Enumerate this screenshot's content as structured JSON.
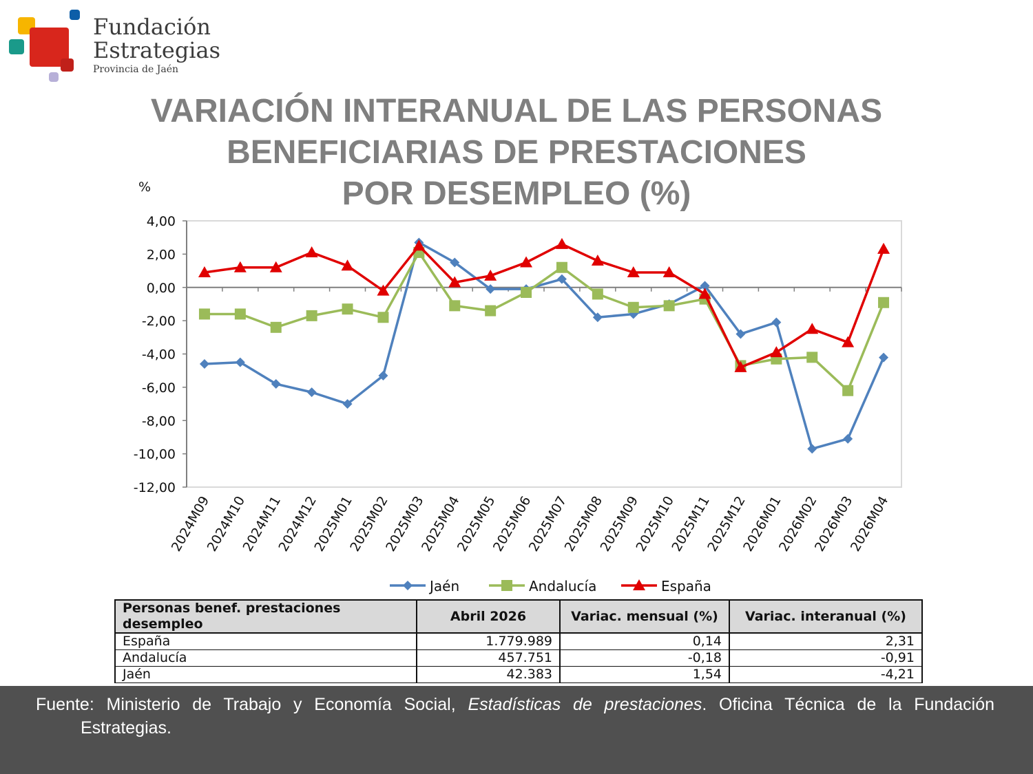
{
  "brand": {
    "line1": "Fundación",
    "line2": "Estrategias",
    "line3": "Provincia de Jaén",
    "colors": [
      "#f7b500",
      "#0d5ea8",
      "#1a9a8a",
      "#d8261c",
      "#b7b0d8"
    ]
  },
  "title": [
    "VARIACIÓN INTERANUAL DE LAS PERSONAS",
    "BENEFICIARIAS DE PRESTACIONES",
    "POR DESEMPLEO (%)"
  ],
  "chart_data": {
    "type": "line",
    "ylabel": "%",
    "ylim": [
      -12,
      4
    ],
    "yticks": [
      "4,00",
      "2,00",
      "0,00",
      "-2,00",
      "-4,00",
      "-6,00",
      "-8,00",
      "-10,00",
      "-12,00"
    ],
    "grid": false,
    "legend": "bottom",
    "categories": [
      "2024M09",
      "2024M10",
      "2024M11",
      "2024M12",
      "2025M01",
      "2025M02",
      "2025M03",
      "2025M04",
      "2025M05",
      "2025M06",
      "2025M07",
      "2025M08",
      "2025M09",
      "2025M10",
      "2025M11",
      "2025M12",
      "2026M01",
      "2026M02",
      "2026M03",
      "2026M04"
    ],
    "series": [
      {
        "name": "Jaén",
        "color": "#4f81bd",
        "marker": "diamond",
        "values": [
          -4.6,
          -4.5,
          -5.8,
          -6.3,
          -7.0,
          -5.3,
          2.7,
          1.5,
          -0.1,
          -0.1,
          0.5,
          -1.8,
          -1.6,
          -1.0,
          0.1,
          -2.8,
          -2.1,
          -9.7,
          -9.1,
          -4.21
        ]
      },
      {
        "name": "Andalucía",
        "color": "#9bbb59",
        "marker": "square",
        "values": [
          -1.6,
          -1.6,
          -2.4,
          -1.7,
          -1.3,
          -1.8,
          2.1,
          -1.1,
          -1.4,
          -0.3,
          1.2,
          -0.4,
          -1.2,
          -1.1,
          -0.7,
          -4.7,
          -4.3,
          -4.2,
          -6.2,
          -0.91
        ]
      },
      {
        "name": "España",
        "color": "#e00000",
        "marker": "triangle",
        "values": [
          0.9,
          1.2,
          1.2,
          2.1,
          1.3,
          -0.2,
          2.5,
          0.3,
          0.7,
          1.5,
          2.6,
          1.6,
          0.9,
          0.9,
          -0.4,
          -4.8,
          -3.9,
          -2.5,
          -3.3,
          2.31
        ]
      }
    ]
  },
  "table": {
    "headers": [
      "Personas benef. prestaciones desempleo",
      "Abril 2026",
      "Variac. mensual (%)",
      "Variac. interanual (%)"
    ],
    "rows": [
      [
        "España",
        "1.779.989",
        "0,14",
        "2,31"
      ],
      [
        "Andalucía",
        "457.751",
        "-0,18",
        "-0,91"
      ],
      [
        "Jaén",
        "42.383",
        "1,54",
        "-4,21"
      ]
    ]
  },
  "footer": {
    "prefix": "Fuente: Ministerio de Trabajo y Economía Social,",
    "italic": "Estadísticas de prestaciones",
    "suffix": ". Oficina Técnica de la Fundación",
    "line2": "Estrategias."
  }
}
